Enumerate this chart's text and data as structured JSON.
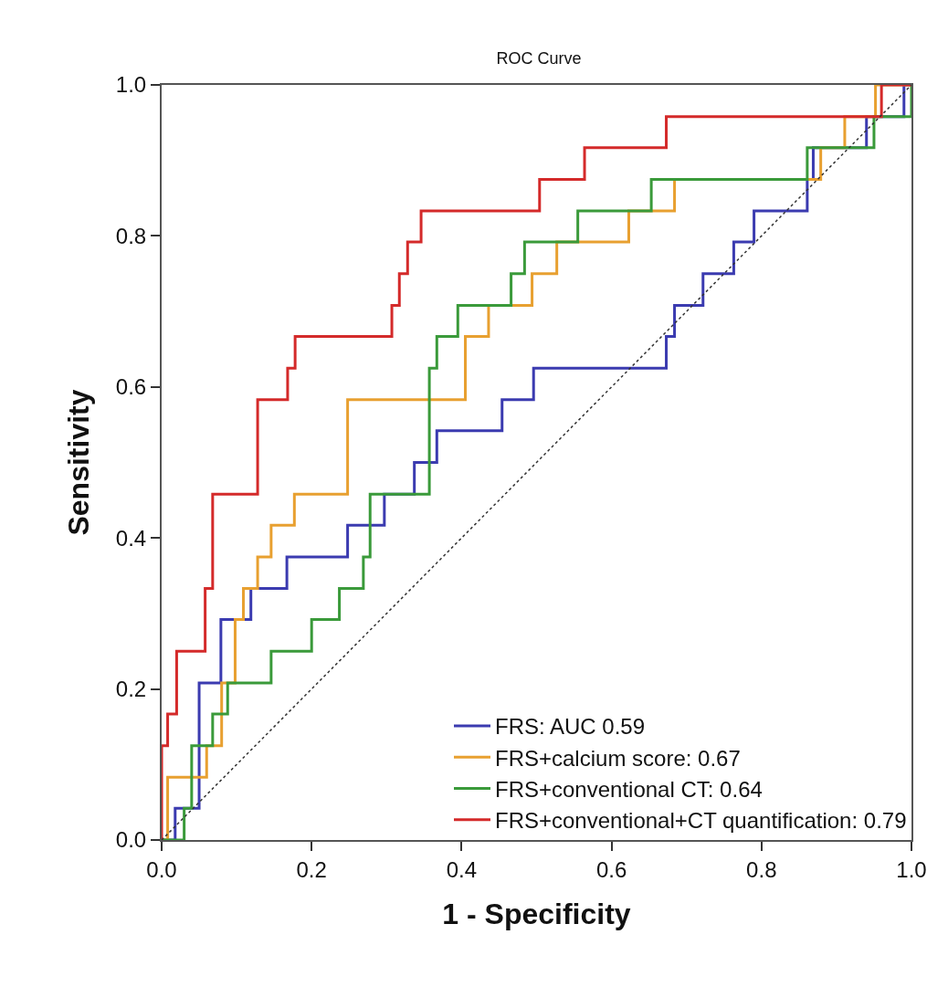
{
  "chart_data": {
    "type": "step",
    "title": "ROC Curve",
    "xlabel": "1 - Specificity",
    "ylabel": "Sensitivity",
    "xlim": [
      0,
      1
    ],
    "ylim": [
      0,
      1
    ],
    "xticks": [
      {
        "value": 0,
        "label": "0.0"
      },
      0.2,
      0.4,
      0.6,
      0.8,
      {
        "value": 1,
        "label": "1.0"
      }
    ],
    "yticks": [
      {
        "value": 0,
        "label": "0.0"
      },
      0.2,
      0.4,
      0.6,
      0.8,
      {
        "value": 1,
        "label": "1.0"
      }
    ],
    "legend": "bottom right",
    "line_style": "solid",
    "series": [
      {
        "name": "FRS: AUC 0.59",
        "color": "#3b3bb0",
        "x": [
          0,
          0.018,
          0.05,
          0.079,
          0.119,
          0.167,
          0.248,
          0.297,
          0.337,
          0.367,
          0.454,
          0.496,
          0.673,
          0.684,
          0.722,
          0.763,
          0.79,
          0.861,
          0.869,
          0.94,
          0.99,
          1
        ],
        "values": [
          0,
          0.042,
          0.208,
          0.292,
          0.333,
          0.375,
          0.417,
          0.458,
          0.5,
          0.542,
          0.583,
          0.625,
          0.667,
          0.708,
          0.75,
          0.792,
          0.833,
          0.875,
          0.917,
          0.958,
          1,
          1
        ]
      },
      {
        "name": "FRS+calcium score: 0.67",
        "color": "#e8a030",
        "x": [
          0,
          0.008,
          0.06,
          0.08,
          0.098,
          0.109,
          0.128,
          0.146,
          0.177,
          0.248,
          0.405,
          0.436,
          0.494,
          0.527,
          0.623,
          0.684,
          0.879,
          0.911,
          0.952,
          1
        ],
        "values": [
          0,
          0.083,
          0.125,
          0.208,
          0.292,
          0.333,
          0.375,
          0.417,
          0.458,
          0.583,
          0.667,
          0.708,
          0.75,
          0.792,
          0.833,
          0.875,
          0.917,
          0.958,
          1,
          1
        ]
      },
      {
        "name": "FRS+conventional CT: 0.64",
        "color": "#3a9a3a",
        "x": [
          0,
          0.03,
          0.04,
          0.068,
          0.088,
          0.146,
          0.2,
          0.237,
          0.269,
          0.278,
          0.357,
          0.367,
          0.395,
          0.466,
          0.484,
          0.555,
          0.653,
          0.861,
          0.95,
          1,
          1
        ],
        "values": [
          0,
          0.042,
          0.125,
          0.167,
          0.208,
          0.25,
          0.292,
          0.333,
          0.375,
          0.458,
          0.625,
          0.667,
          0.708,
          0.75,
          0.792,
          0.833,
          0.875,
          0.917,
          0.958,
          0.958,
          1
        ]
      },
      {
        "name": "FRS+conventional+CT quantification: 0.79",
        "color": "#d42a2a",
        "x": [
          0,
          0,
          0.008,
          0.02,
          0.058,
          0.068,
          0.128,
          0.168,
          0.178,
          0.307,
          0.317,
          0.328,
          0.346,
          0.504,
          0.564,
          0.673,
          0.96,
          1
        ],
        "values": [
          0,
          0.125,
          0.167,
          0.25,
          0.333,
          0.458,
          0.583,
          0.625,
          0.667,
          0.708,
          0.75,
          0.792,
          0.833,
          0.875,
          0.917,
          0.958,
          1,
          1
        ]
      },
      {
        "type": "line",
        "line_style": "dotted",
        "color": "#333333",
        "x": [
          0,
          1
        ],
        "values": [
          0,
          1
        ]
      }
    ]
  }
}
